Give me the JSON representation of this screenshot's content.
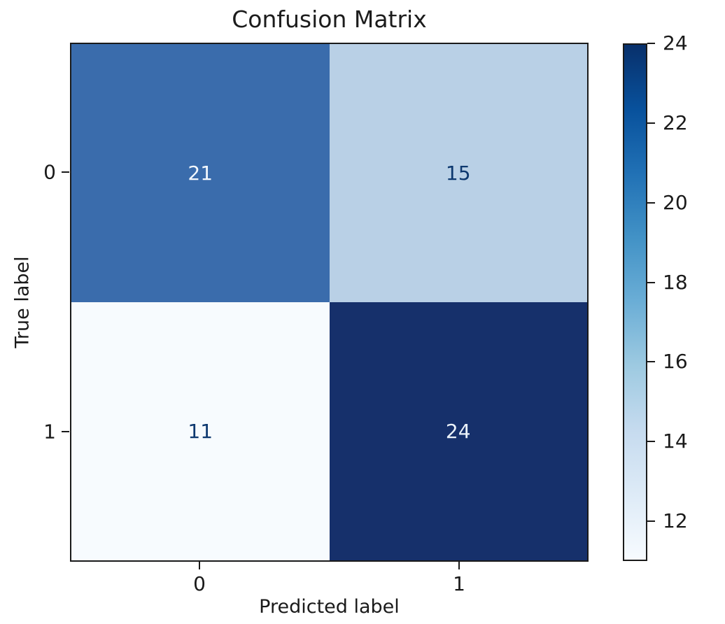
{
  "figure": {
    "background_color": "#ffffff",
    "text_color": "#1a1a1a"
  },
  "chart_data": {
    "type": "heatmap",
    "title": "Confusion Matrix",
    "xlabel": "Predicted label",
    "ylabel": "True label",
    "x_tick_labels": [
      "0",
      "1"
    ],
    "y_tick_labels": [
      "0",
      "1"
    ],
    "matrix": [
      [
        21,
        15
      ],
      [
        11,
        24
      ]
    ],
    "vmin": 11,
    "vmax": 24,
    "colormap": "Blues",
    "grid": false,
    "legend_position": "colorbar-right",
    "colorbar_ticks": [
      24,
      22,
      20,
      18,
      16,
      14,
      12
    ],
    "colormap_stops": [
      "#f7fbff",
      "#deebf7",
      "#c6dbef",
      "#9ecae1",
      "#6baed6",
      "#4292c6",
      "#2171b5",
      "#08519c",
      "#08306b"
    ],
    "cell_colors": [
      [
        "#3a6cac",
        "#b9d0e6"
      ],
      [
        "#f7fbfe",
        "#16306b"
      ]
    ],
    "cell_text_colors": [
      [
        "#f3f8fd",
        "#0d386f"
      ],
      [
        "#0d386f",
        "#ebf2fa"
      ]
    ]
  }
}
